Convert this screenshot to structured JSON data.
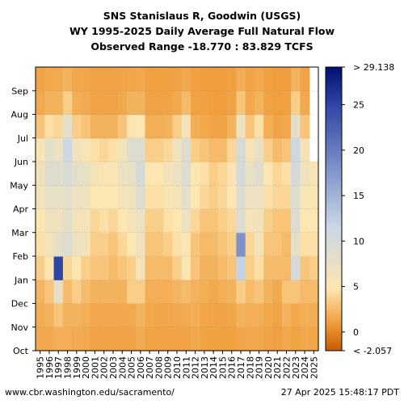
{
  "title_lines": [
    "SNS Stanislaus R, Goodwin (USGS)",
    "WY 1995-2025 Daily Average Full Natural Flow",
    "Observed Range -18.770 : 83.829 TCFS"
  ],
  "footer": {
    "left": "www.cbr.washington.edu/sacramento/",
    "right": "27 Apr 2025 15:48:17 PDT"
  },
  "chart_data": {
    "type": "heatmap",
    "title": "SNS Stanislaus R, Goodwin (USGS)",
    "subtitle": "WY 1995-2025 Daily Average Full Natural Flow",
    "observed_range": [
      -18.77,
      83.829
    ],
    "units": "TCFS",
    "x_categories": [
      "1995",
      "1996",
      "1997",
      "1998",
      "1999",
      "2000",
      "2001",
      "2002",
      "2003",
      "2004",
      "2005",
      "2006",
      "2007",
      "2008",
      "2009",
      "2010",
      "2011",
      "2012",
      "2013",
      "2014",
      "2015",
      "2016",
      "2017",
      "2018",
      "2019",
      "2020",
      "2021",
      "2022",
      "2023",
      "2024",
      "2025"
    ],
    "y_categories": [
      "Oct",
      "Nov",
      "Dec",
      "Jan",
      "Feb",
      "Mar",
      "Apr",
      "May",
      "Jun",
      "Jul",
      "Aug",
      "Sep"
    ],
    "colorbar": {
      "range": [
        -2.057,
        29.138
      ],
      "ticks": [
        0,
        5,
        10,
        15,
        20,
        25
      ],
      "max_label": "> 29.138",
      "min_label": "< -2.057",
      "colors": [
        "#c85a00",
        "#f0a040",
        "#fde6b0",
        "#c8d6e6",
        "#3048a8",
        "#001070"
      ]
    },
    "monthly_flow": [
      [
        1.5,
        1.7,
        2.2,
        3.5,
        4.5,
        5.0,
        6.0,
        6.5,
        5.5,
        3.0,
        1.5,
        1.3
      ],
      [
        1.5,
        2.0,
        3.0,
        5.0,
        6.0,
        6.5,
        7.5,
        9.0,
        8.0,
        4.5,
        2.0,
        1.5
      ],
      [
        1.8,
        3.0,
        8.0,
        25.0,
        8.0,
        6.5,
        7.5,
        8.5,
        7.0,
        4.0,
        2.0,
        1.6
      ],
      [
        1.8,
        2.0,
        2.5,
        4.0,
        9.0,
        8.0,
        8.0,
        9.5,
        11.0,
        8.0,
        3.5,
        2.0
      ],
      [
        1.6,
        2.0,
        3.5,
        5.0,
        7.0,
        6.0,
        7.0,
        8.0,
        6.5,
        3.5,
        1.8,
        1.5
      ],
      [
        1.5,
        1.8,
        2.5,
        3.5,
        6.0,
        6.0,
        6.5,
        7.5,
        5.5,
        3.0,
        1.6,
        1.4
      ],
      [
        1.3,
        1.5,
        2.0,
        3.0,
        3.5,
        4.0,
        5.0,
        6.0,
        4.5,
        2.0,
        1.3,
        1.2
      ],
      [
        1.3,
        1.5,
        2.0,
        3.0,
        3.5,
        4.5,
        5.0,
        5.5,
        4.0,
        2.0,
        1.3,
        1.2
      ],
      [
        1.3,
        1.5,
        2.0,
        2.5,
        3.0,
        4.0,
        5.0,
        5.5,
        4.5,
        2.0,
        1.3,
        1.2
      ],
      [
        1.3,
        1.5,
        2.0,
        3.0,
        4.0,
        5.0,
        6.0,
        7.0,
        6.0,
        3.0,
        1.5,
        1.3
      ],
      [
        1.3,
        1.6,
        3.5,
        3.5,
        5.0,
        6.0,
        6.5,
        7.5,
        9.0,
        5.5,
        2.0,
        1.4
      ],
      [
        1.6,
        2.0,
        3.5,
        6.0,
        6.5,
        7.0,
        9.0,
        10.0,
        9.0,
        5.0,
        2.0,
        1.5
      ],
      [
        1.3,
        1.5,
        1.8,
        2.5,
        3.0,
        3.5,
        4.5,
        5.0,
        3.5,
        1.8,
        1.2,
        1.1
      ],
      [
        1.2,
        1.4,
        1.8,
        2.5,
        3.0,
        3.5,
        4.5,
        5.0,
        3.5,
        1.8,
        1.2,
        1.1
      ],
      [
        1.2,
        1.4,
        1.8,
        2.5,
        3.5,
        4.5,
        5.5,
        6.0,
        4.0,
        2.0,
        1.2,
        1.1
      ],
      [
        1.3,
        1.5,
        2.2,
        3.5,
        4.5,
        5.0,
        6.0,
        7.0,
        6.5,
        3.5,
        1.5,
        1.2
      ],
      [
        1.3,
        1.6,
        2.5,
        5.0,
        5.5,
        7.0,
        8.0,
        9.0,
        9.0,
        6.0,
        2.5,
        1.5
      ],
      [
        1.5,
        1.8,
        2.0,
        3.0,
        3.0,
        4.0,
        5.0,
        5.0,
        3.5,
        1.8,
        1.2,
        1.1
      ],
      [
        1.2,
        1.4,
        1.8,
        2.0,
        2.5,
        3.0,
        4.0,
        4.5,
        3.0,
        1.5,
        1.1,
        1.0
      ],
      [
        1.1,
        1.3,
        1.6,
        2.0,
        2.5,
        3.0,
        3.5,
        3.5,
        2.5,
        1.3,
        1.0,
        1.0
      ],
      [
        1.1,
        1.3,
        1.8,
        2.5,
        3.0,
        3.5,
        4.0,
        4.0,
        2.5,
        1.3,
        1.0,
        1.0
      ],
      [
        1.1,
        1.4,
        2.0,
        3.0,
        3.5,
        4.0,
        5.0,
        5.5,
        4.0,
        2.0,
        1.2,
        1.1
      ],
      [
        1.4,
        2.0,
        3.5,
        12.0,
        18.0,
        9.0,
        9.0,
        10.0,
        10.0,
        7.0,
        3.0,
        1.8
      ],
      [
        1.5,
        1.8,
        2.5,
        3.5,
        4.0,
        6.0,
        7.0,
        7.5,
        6.0,
        3.0,
        1.5,
        1.3
      ],
      [
        1.5,
        1.8,
        3.0,
        4.5,
        6.0,
        6.5,
        7.0,
        8.5,
        7.5,
        4.5,
        2.0,
        1.5
      ],
      [
        1.3,
        1.5,
        2.0,
        2.5,
        3.0,
        3.5,
        4.5,
        5.0,
        3.5,
        1.8,
        1.2,
        1.1
      ],
      [
        1.1,
        1.3,
        1.6,
        2.5,
        3.0,
        3.0,
        4.0,
        4.0,
        2.5,
        1.3,
        1.0,
        1.0
      ],
      [
        1.5,
        2.0,
        3.0,
        2.5,
        2.5,
        3.0,
        4.0,
        4.5,
        3.0,
        1.5,
        1.1,
        1.0
      ],
      [
        1.2,
        1.5,
        3.0,
        10.0,
        8.0,
        9.0,
        9.0,
        10.0,
        11.0,
        8.0,
        3.5,
        2.0
      ],
      [
        1.5,
        1.8,
        2.5,
        3.0,
        4.5,
        5.0,
        5.5,
        6.5,
        6.0,
        3.0,
        1.5,
        1.3
      ],
      [
        1.4,
        1.7,
        2.5,
        3.5,
        4.5,
        5.0,
        5.5,
        5.5,
        null,
        null,
        null,
        null
      ]
    ]
  }
}
